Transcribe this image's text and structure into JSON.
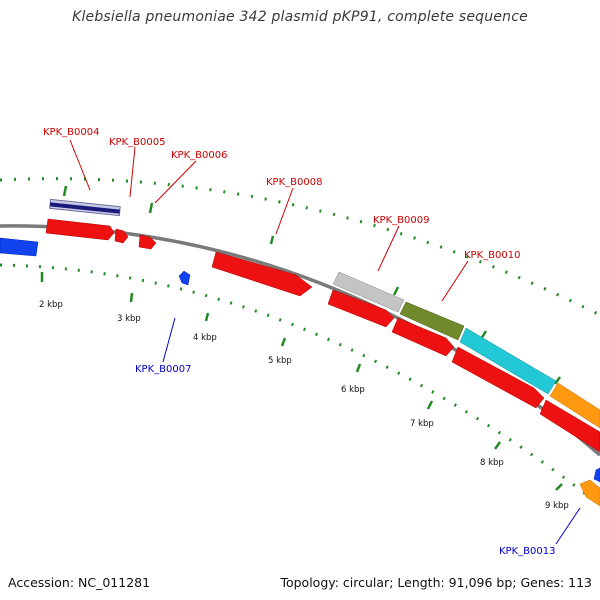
{
  "title": "Klebsiella pneumoniae 342 plasmid pKP91, complete sequence",
  "footer": {
    "accession": "Accession: NC_011281",
    "summary": "Topology: circular; Length: 91,096 bp; Genes: 113"
  },
  "colors": {
    "backbone": "#808080",
    "tick": "#228B22",
    "forward_label": "#cc0000",
    "reverse_label": "#0000cc",
    "red_cds": "#ee1111",
    "blue_cds": "#1144ee"
  },
  "scale_labels": [
    "2 kbp",
    "3 kbp",
    "4 kbp",
    "5 kbp",
    "6 kbp",
    "7 kbp",
    "8 kbp",
    "9 kbp"
  ],
  "gene_labels": [
    {
      "id": "KPK_B0004",
      "strand": "forward"
    },
    {
      "id": "KPK_B0005",
      "strand": "forward"
    },
    {
      "id": "KPK_B0006",
      "strand": "forward"
    },
    {
      "id": "KPK_B0008",
      "strand": "forward"
    },
    {
      "id": "KPK_B0009",
      "strand": "forward"
    },
    {
      "id": "KPK_B0010",
      "strand": "forward"
    },
    {
      "id": "KPK_B0007",
      "strand": "reverse"
    },
    {
      "id": "KPK_B0013",
      "strand": "reverse"
    }
  ]
}
